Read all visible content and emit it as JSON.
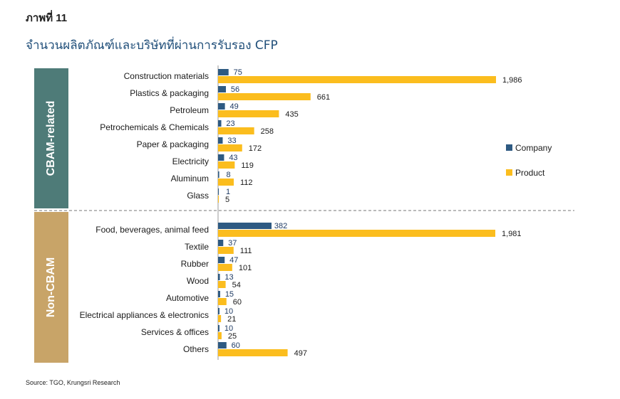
{
  "figure_label": "ภาพที่ 11",
  "title": "จำนวนผลิตภัณฑ์และบริษัทที่ผ่านการรับรอง CFP",
  "source": "Source: TGO, Krungsri Research",
  "colors": {
    "company": "#2e5a82",
    "product": "#fbbd1e",
    "cbam": "#4e7b78",
    "non_cbam": "#c8a468",
    "divider": "#777777"
  },
  "chart_data": {
    "type": "bar",
    "orientation": "horizontal",
    "legend_position": "right",
    "series": [
      {
        "name": "Company",
        "values": [
          75,
          56,
          49,
          23,
          33,
          43,
          8,
          1,
          382,
          37,
          47,
          13,
          15,
          10,
          10,
          60
        ],
        "labels": [
          "75",
          "56",
          "49",
          "23",
          "33",
          "43",
          "8",
          "1",
          "382",
          "37",
          "47",
          "13",
          "15",
          "10",
          "10",
          "60"
        ]
      },
      {
        "name": "Product",
        "values": [
          1986,
          661,
          435,
          258,
          172,
          119,
          112,
          5,
          1981,
          111,
          101,
          54,
          60,
          21,
          25,
          497
        ],
        "labels": [
          "1,986",
          "661",
          "435",
          "258",
          "172",
          "119",
          "112",
          "5",
          "1,981",
          "111",
          "101",
          "54",
          "60",
          "21",
          "25",
          "497"
        ]
      }
    ],
    "groups": [
      {
        "name": "CBAM-related",
        "categories": [
          "Construction materials",
          "Plastics & packaging",
          "Petroleum",
          "Petrochemicals & Chemicals",
          "Paper & packaging",
          "Electricity",
          "Aluminum",
          "Glass"
        ]
      },
      {
        "name": "Non-CBAM",
        "categories": [
          "Food, beverages, animal feed",
          "Textile",
          "Rubber",
          "Wood",
          "Automotive",
          "Electrical appliances & electronics",
          "Services & offices",
          "Others"
        ]
      }
    ],
    "xlim": [
      0,
      2000
    ],
    "grid": false
  }
}
